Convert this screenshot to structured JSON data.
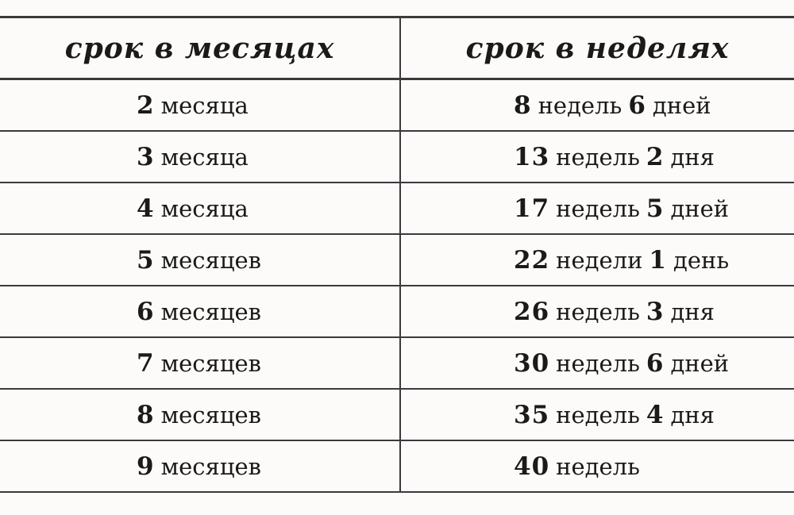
{
  "page": {
    "background_color": "#fcfbf9",
    "line_color": "#3a393b",
    "text_color": "#1a1a1a"
  },
  "table": {
    "headers": {
      "months": "срок в месяцах",
      "weeks": "срок в неделях"
    },
    "rows": [
      {
        "month_value": "2",
        "month_label": "месяца",
        "weeks_value": "8",
        "weeks_label": "недель",
        "days_value": "6",
        "days_label": "дней"
      },
      {
        "month_value": "3",
        "month_label": "месяца",
        "weeks_value": "13",
        "weeks_label": "недель",
        "days_value": "2",
        "days_label": "дня"
      },
      {
        "month_value": "4",
        "month_label": "месяца",
        "weeks_value": "17",
        "weeks_label": "недель",
        "days_value": "5",
        "days_label": "дней"
      },
      {
        "month_value": "5",
        "month_label": "месяцев",
        "weeks_value": "22",
        "weeks_label": "недели",
        "days_value": "1",
        "days_label": "день"
      },
      {
        "month_value": "6",
        "month_label": "месяцев",
        "weeks_value": "26",
        "weeks_label": "недель",
        "days_value": "3",
        "days_label": "дня"
      },
      {
        "month_value": "7",
        "month_label": "месяцев",
        "weeks_value": "30",
        "weeks_label": "недель",
        "days_value": "6",
        "days_label": "дней"
      },
      {
        "month_value": "8",
        "month_label": "месяцев",
        "weeks_value": "35",
        "weeks_label": "недель",
        "days_value": "4",
        "days_label": "дня"
      },
      {
        "month_value": "9",
        "month_label": "месяцев",
        "weeks_value": "40",
        "weeks_label": "недель",
        "days_value": "",
        "days_label": ""
      }
    ]
  },
  "chart_data": {
    "type": "table",
    "columns": [
      "срок в месяцах",
      "срок в неделях"
    ],
    "rows": [
      [
        "2 месяца",
        "8 недель 6 дней"
      ],
      [
        "3 месяца",
        "13 недель 2 дня"
      ],
      [
        "4 месяца",
        "17 недель 5 дней"
      ],
      [
        "5 месяцев",
        "22 недели 1 день"
      ],
      [
        "6 месяцев",
        "26 недель 3 дня"
      ],
      [
        "7 месяцев",
        "30 недель 6 дней"
      ],
      [
        "8 месяцев",
        "35 недель 4 дня"
      ],
      [
        "9 месяцев",
        "40 недель"
      ]
    ]
  }
}
